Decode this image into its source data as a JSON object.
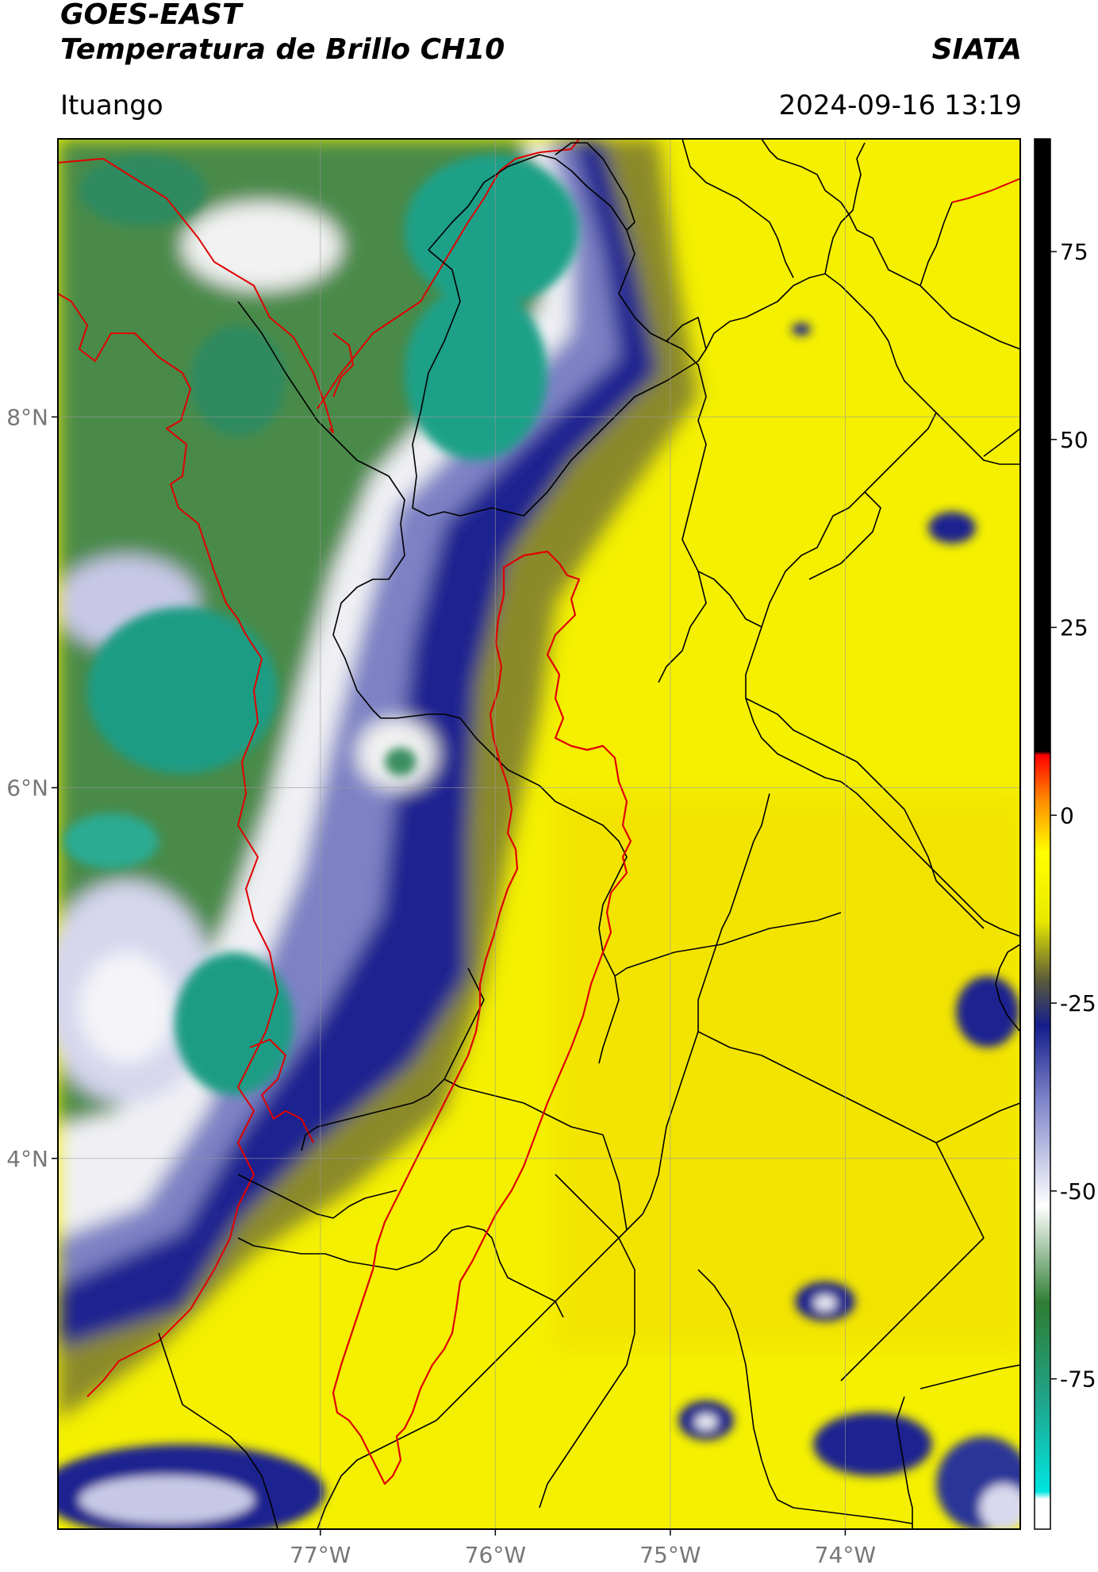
{
  "header": {
    "satellite": "GOES-EAST",
    "product": "Temperatura de Brillo CH10",
    "organization": "SIATA",
    "location": "Ituango",
    "datetime": "2024-09-16 13:19"
  },
  "map": {
    "lon_range": [
      -78.5,
      -73.0
    ],
    "lat_range": [
      2.0,
      9.5
    ],
    "lat_ticks": [
      {
        "value": 8,
        "label": "8°N"
      },
      {
        "value": 6,
        "label": "6°N"
      },
      {
        "value": 4,
        "label": "4°N"
      }
    ],
    "lon_ticks": [
      {
        "value": -77,
        "label": "77°W"
      },
      {
        "value": -76,
        "label": "76°W"
      },
      {
        "value": -75,
        "label": "75°W"
      },
      {
        "value": -74,
        "label": "74°W"
      }
    ],
    "border_colors": {
      "country": "#e00000",
      "department": "#000000",
      "highlight": "#e00000"
    }
  },
  "colorbar": {
    "range": [
      -95,
      90
    ],
    "ticks": [
      {
        "value": 75,
        "label": "75"
      },
      {
        "value": 50,
        "label": "50"
      },
      {
        "value": 25,
        "label": "25"
      },
      {
        "value": 0,
        "label": "0"
      },
      {
        "value": -25,
        "label": "-25"
      },
      {
        "value": -50,
        "label": "-50"
      },
      {
        "value": -75,
        "label": "-75"
      }
    ],
    "stops": [
      {
        "value": -95,
        "color": "#ffffff"
      },
      {
        "value": -91,
        "color": "#ffffff"
      },
      {
        "value": -90,
        "color": "#00e5e0"
      },
      {
        "value": -78,
        "color": "#1fa58c"
      },
      {
        "value": -65,
        "color": "#2e7d32"
      },
      {
        "value": -52,
        "color": "#ffffff"
      },
      {
        "value": -38,
        "color": "#7f85c9"
      },
      {
        "value": -28,
        "color": "#141e8c"
      },
      {
        "value": -22,
        "color": "#5a5a3a"
      },
      {
        "value": -14,
        "color": "#e9e900"
      },
      {
        "value": -5,
        "color": "#ffff00"
      },
      {
        "value": 2,
        "color": "#ff8c00"
      },
      {
        "value": 8,
        "color": "#ff0000"
      },
      {
        "value": 8.5,
        "color": "#000000"
      },
      {
        "value": 90,
        "color": "#000000"
      }
    ]
  }
}
